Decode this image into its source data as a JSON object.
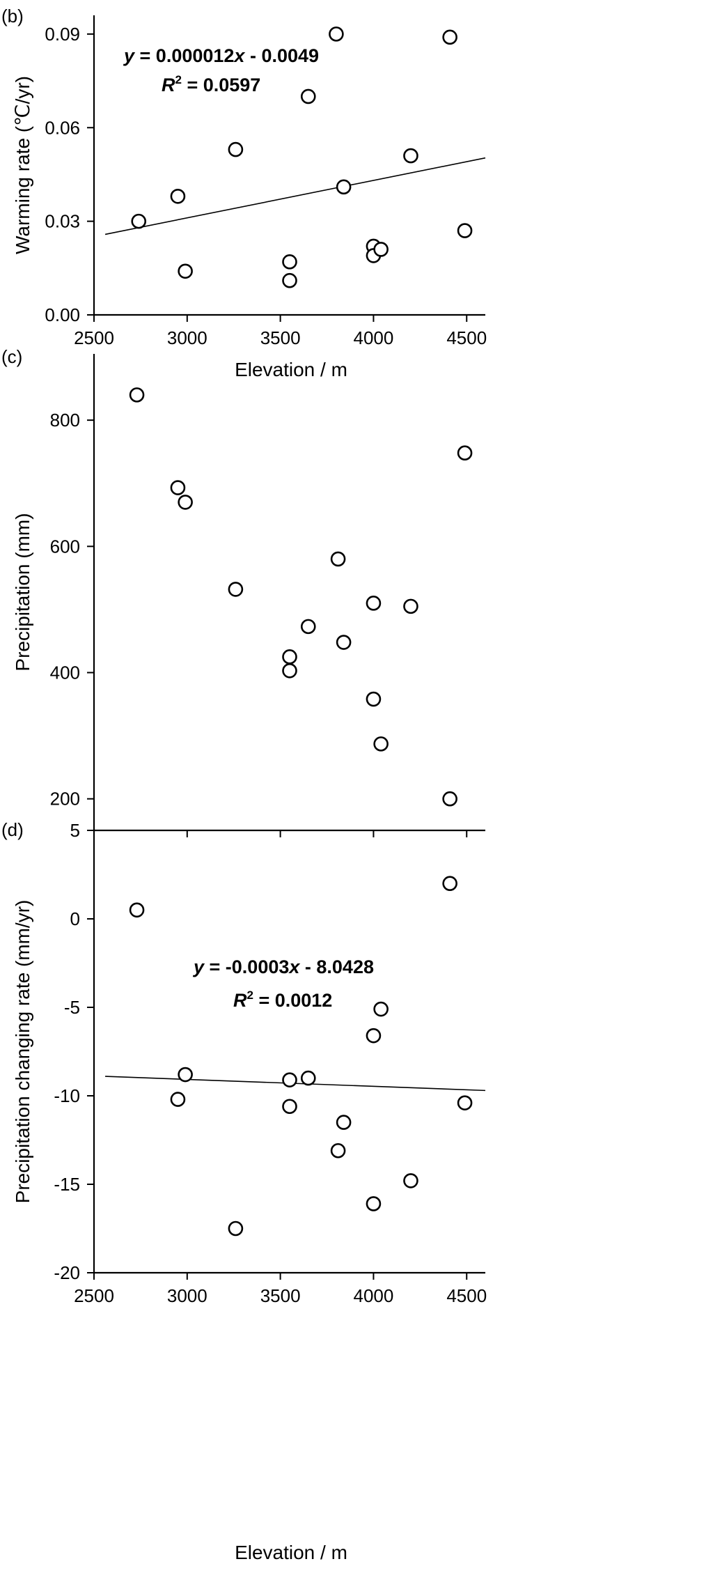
{
  "chart_data": [
    {
      "type": "scatter",
      "panel_label": "(b)",
      "xlabel": "Elevation / m",
      "ylabel": "Warming rate (℃/yr)",
      "xlim": [
        2500,
        4600
      ],
      "ylim": [
        0.0,
        0.096
      ],
      "xticks": [
        "2500",
        "3000",
        "3500",
        "4000",
        "4500"
      ],
      "xtick_values": [
        2500,
        3000,
        3500,
        4000,
        4500
      ],
      "yticks": [
        "0.00",
        "0.03",
        "0.06",
        "0.09"
      ],
      "ytick_values": [
        0.0,
        0.03,
        0.06,
        0.09
      ],
      "points": [
        [
          2740,
          0.03
        ],
        [
          2950,
          0.038
        ],
        [
          2990,
          0.014
        ],
        [
          3260,
          0.053
        ],
        [
          3550,
          0.017
        ],
        [
          3550,
          0.011
        ],
        [
          3650,
          0.07
        ],
        [
          3800,
          0.09
        ],
        [
          3840,
          0.041
        ],
        [
          4000,
          0.022
        ],
        [
          4000,
          0.019
        ],
        [
          4040,
          0.021
        ],
        [
          4200,
          0.051
        ],
        [
          4410,
          0.089
        ],
        [
          4490,
          0.027
        ]
      ],
      "fit_line": {
        "x": [
          2560,
          4600
        ],
        "y": [
          0.0258,
          0.0503
        ]
      },
      "equation": {
        "prefix": "y",
        "body": " = 0.000012",
        "var": "x",
        "suffix": " - 0.0049"
      },
      "r2": {
        "prefix": "R",
        "sup": "2",
        "body": " = 0.0597"
      },
      "grid": false
    },
    {
      "type": "scatter",
      "panel_label": "(c)",
      "xlabel": "",
      "ylabel": "Precipitation (mm)",
      "xlim": [
        2500,
        4600
      ],
      "ylim": [
        150,
        905
      ],
      "xticks": [],
      "xtick_values": [
        2500,
        3000,
        3500,
        4000,
        4500
      ],
      "yticks": [
        "200",
        "400",
        "600",
        "800"
      ],
      "ytick_values": [
        200,
        400,
        600,
        800
      ],
      "points": [
        [
          2730,
          840
        ],
        [
          2950,
          693
        ],
        [
          2990,
          670
        ],
        [
          3260,
          532
        ],
        [
          3550,
          425
        ],
        [
          3550,
          403
        ],
        [
          3650,
          473
        ],
        [
          3810,
          580
        ],
        [
          3840,
          448
        ],
        [
          4000,
          510
        ],
        [
          4000,
          358
        ],
        [
          4040,
          287
        ],
        [
          4200,
          505
        ],
        [
          4410,
          200
        ],
        [
          4490,
          748
        ]
      ],
      "grid": false
    },
    {
      "type": "scatter",
      "panel_label": "(d)",
      "xlabel": "Elevation / m",
      "ylabel": "Precipitation changing rate (mm/yr)",
      "xlim": [
        2500,
        4600
      ],
      "ylim": [
        -20,
        5
      ],
      "xticks": [
        "2500",
        "3000",
        "3500",
        "4000",
        "4500"
      ],
      "xtick_values": [
        2500,
        3000,
        3500,
        4000,
        4500
      ],
      "yticks": [
        "5",
        "0",
        "-5",
        "-10",
        "-15",
        "-20"
      ],
      "ytick_values": [
        5,
        0,
        -5,
        -10,
        -15,
        -20
      ],
      "points": [
        [
          2730,
          0.5
        ],
        [
          2950,
          -10.2
        ],
        [
          2990,
          -8.8
        ],
        [
          3260,
          -17.5
        ],
        [
          3550,
          -9.1
        ],
        [
          3550,
          -10.6
        ],
        [
          3650,
          -9.0
        ],
        [
          3810,
          -13.1
        ],
        [
          3840,
          -11.5
        ],
        [
          4000,
          -6.6
        ],
        [
          4000,
          -16.1
        ],
        [
          4040,
          -5.1
        ],
        [
          4200,
          -14.8
        ],
        [
          4410,
          2.0
        ],
        [
          4490,
          -10.4
        ]
      ],
      "fit_line": {
        "x": [
          2560,
          4600
        ],
        "y": [
          -8.9,
          -9.7
        ]
      },
      "equation": {
        "prefix": "y",
        "body": " = -0.0003",
        "var": "x",
        "suffix": " - 8.0428"
      },
      "r2": {
        "prefix": "R",
        "sup": "2",
        "body": " = 0.0012"
      },
      "grid": false
    }
  ]
}
